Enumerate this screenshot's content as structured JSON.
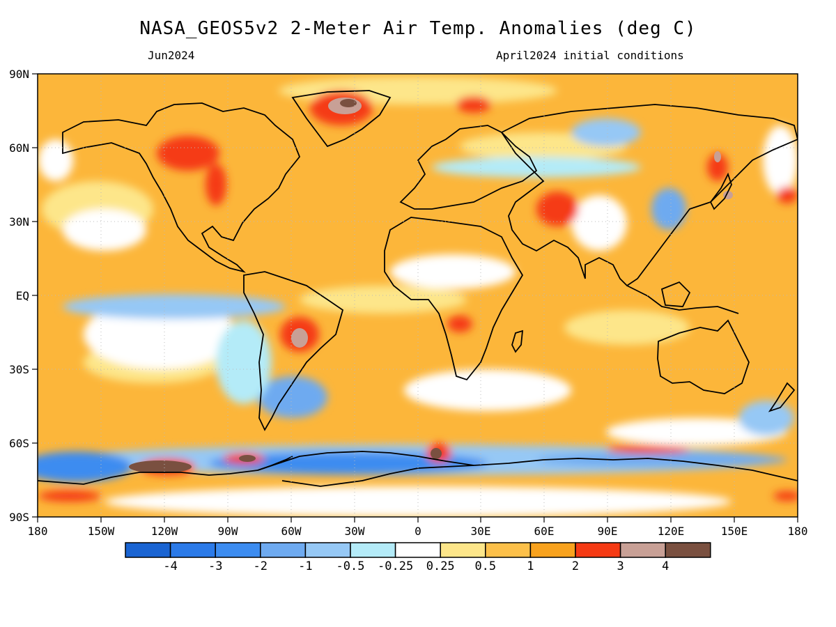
{
  "header": {
    "title": "NASA_GEOS5v2 2-Meter Air Temp. Anomalies (deg C)",
    "forecast_month": "Jun2024",
    "init_conditions": "April2024 initial conditions"
  },
  "map": {
    "projection": "equirectangular",
    "lon_range": [
      -180,
      180
    ],
    "lat_range": [
      -90,
      90
    ],
    "lon_ticks": [
      "180",
      "150W",
      "120W",
      "90W",
      "60W",
      "30W",
      "0",
      "30E",
      "60E",
      "90E",
      "120E",
      "150E",
      "180"
    ],
    "lat_ticks": [
      "90N",
      "60N",
      "30N",
      "EQ",
      "30S",
      "60S",
      "90S"
    ],
    "background_anomaly_color": "#fcb63a",
    "regions": [
      {
        "name": "greenland-warm",
        "category": "3 to 4"
      },
      {
        "name": "canada-warm",
        "category": "2 to 3"
      },
      {
        "name": "iran-warm",
        "category": "2 to 3"
      },
      {
        "name": "brazil-warm",
        "category": "3 to 4"
      },
      {
        "name": "central-africa-warm",
        "category": "2 to 3"
      },
      {
        "name": "equatorial-pacific-cool",
        "category": "-1 to -2"
      },
      {
        "name": "southern-ocean-cool",
        "category": "-2 to -3"
      },
      {
        "name": "antarctic-peninsula-warm",
        "category": ">4"
      },
      {
        "name": "east-asia-cool",
        "category": "-1 to -2"
      }
    ]
  },
  "colorbar": {
    "colors": [
      "#1a64d2",
      "#2b7ae8",
      "#3c8cf0",
      "#6eaaf0",
      "#96c8f5",
      "#b4ebf8",
      "#ffffff",
      "#fde68a",
      "#fcc04a",
      "#f8a21e",
      "#f53a14",
      "#c8a096",
      "#7a5040"
    ],
    "labels": [
      "-4",
      "-3",
      "-2",
      "-1",
      "-0.5",
      "-0.25",
      "0.25",
      "0.5",
      "1",
      "2",
      "3",
      "4"
    ]
  }
}
